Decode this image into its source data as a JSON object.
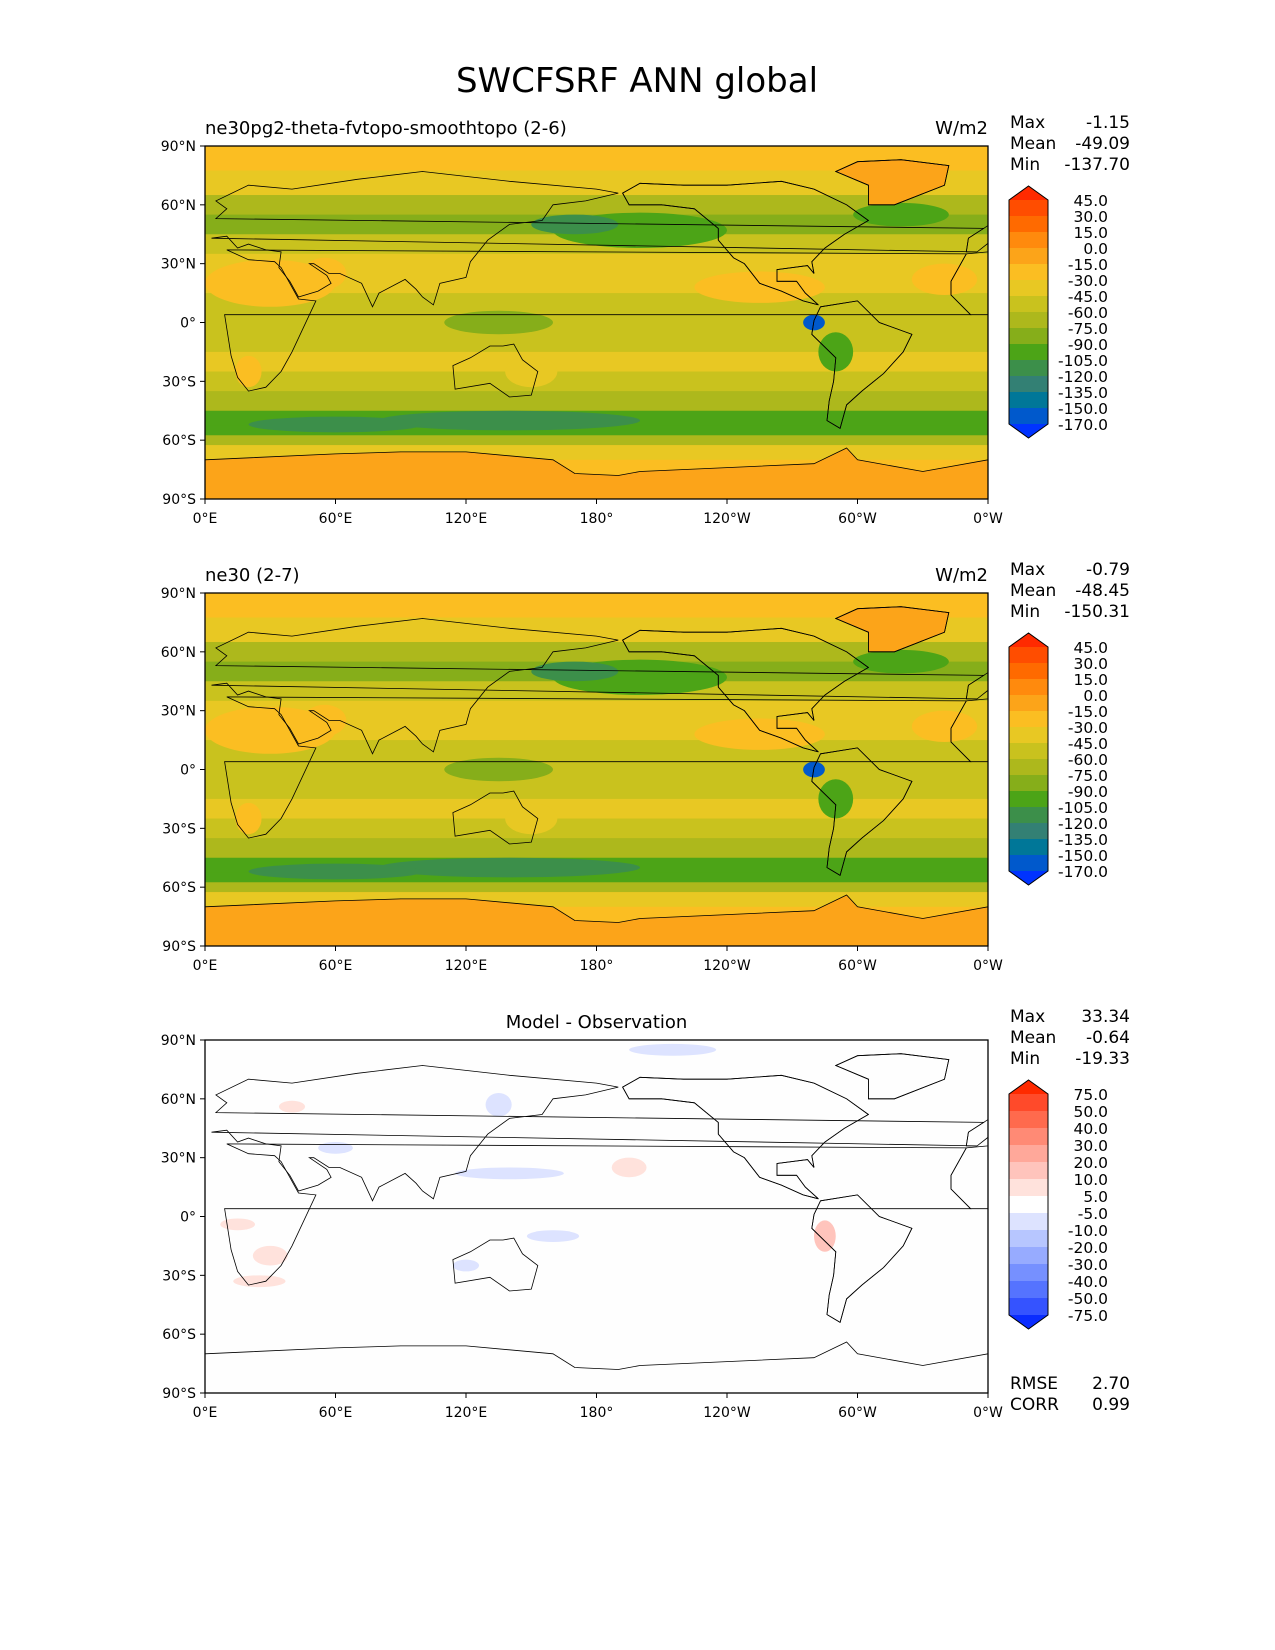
{
  "figure_title": "SWCFSRF ANN global",
  "chart_data": [
    {
      "type": "heatmap",
      "subtitle": "ne30pg2-theta-fvtopo-smoothtopo (2-6)",
      "units": "W/m2",
      "stats": {
        "Max": "-1.15",
        "Mean": "-49.09",
        "Min": "-137.70"
      },
      "x_ticks": [
        "0°E",
        "60°E",
        "120°E",
        "180°",
        "120°W",
        "60°W",
        "0°W"
      ],
      "y_ticks": [
        "90°N",
        "60°N",
        "30°N",
        "0°",
        "30°S",
        "60°S",
        "90°S"
      ],
      "xlim": [
        0,
        360
      ],
      "ylim": [
        -90,
        90
      ],
      "colorbar": {
        "levels": [
          "45.0",
          "30.0",
          "15.0",
          "0.0",
          "-15.0",
          "-30.0",
          "-45.0",
          "-60.0",
          "-75.0",
          "-90.0",
          "-105.0",
          "-120.0",
          "-135.0",
          "-150.0",
          "-170.0"
        ],
        "colors": [
          "#ff2a00",
          "#ff4d00",
          "#ff6a00",
          "#ff8a0d",
          "#fca419",
          "#fbbe22",
          "#e8c823",
          "#c9c21e",
          "#adb81c",
          "#86ae1a",
          "#4ca417",
          "#3c8f4a",
          "#338074",
          "#007798",
          "#0059cc",
          "#0033ff"
        ]
      },
      "zonal_estimate": {
        "lat": [
          85,
          70,
          60,
          50,
          40,
          30,
          20,
          10,
          0,
          -10,
          -20,
          -30,
          -40,
          -50,
          -55,
          -60,
          -65,
          -75,
          -85
        ],
        "value": [
          -25,
          -40,
          -60,
          -75,
          -55,
          -30,
          -30,
          -50,
          -55,
          -50,
          -40,
          -45,
          -70,
          -95,
          -90,
          -70,
          -40,
          -15,
          -10
        ]
      }
    },
    {
      "type": "heatmap",
      "subtitle": "ne30 (2-7)",
      "units": "W/m2",
      "stats": {
        "Max": "-0.79",
        "Mean": "-48.45",
        "Min": "-150.31"
      },
      "x_ticks": [
        "0°E",
        "60°E",
        "120°E",
        "180°",
        "120°W",
        "60°W",
        "0°W"
      ],
      "y_ticks": [
        "90°N",
        "60°N",
        "30°N",
        "0°",
        "30°S",
        "60°S",
        "90°S"
      ],
      "xlim": [
        0,
        360
      ],
      "ylim": [
        -90,
        90
      ],
      "colorbar": {
        "levels": [
          "45.0",
          "30.0",
          "15.0",
          "0.0",
          "-15.0",
          "-30.0",
          "-45.0",
          "-60.0",
          "-75.0",
          "-90.0",
          "-105.0",
          "-120.0",
          "-135.0",
          "-150.0",
          "-170.0"
        ],
        "colors": [
          "#ff2a00",
          "#ff4d00",
          "#ff6a00",
          "#ff8a0d",
          "#fca419",
          "#fbbe22",
          "#e8c823",
          "#c9c21e",
          "#adb81c",
          "#86ae1a",
          "#4ca417",
          "#3c8f4a",
          "#338074",
          "#007798",
          "#0059cc",
          "#0033ff"
        ]
      },
      "zonal_estimate": {
        "lat": [
          85,
          70,
          60,
          50,
          40,
          30,
          20,
          10,
          0,
          -10,
          -20,
          -30,
          -40,
          -50,
          -55,
          -60,
          -65,
          -75,
          -85
        ],
        "value": [
          -25,
          -40,
          -60,
          -75,
          -55,
          -30,
          -30,
          -50,
          -55,
          -50,
          -40,
          -45,
          -70,
          -95,
          -90,
          -70,
          -40,
          -15,
          -10
        ]
      }
    },
    {
      "type": "heatmap",
      "subtitle": "Model - Observation",
      "units": "",
      "stats": {
        "Max": "33.34",
        "Mean": "-0.64",
        "Min": "-19.33"
      },
      "metrics": {
        "RMSE": "2.70",
        "CORR": "0.99"
      },
      "x_ticks": [
        "0°E",
        "60°E",
        "120°E",
        "180°",
        "120°W",
        "60°W",
        "0°W"
      ],
      "y_ticks": [
        "90°N",
        "60°N",
        "30°N",
        "0°",
        "30°S",
        "60°S",
        "90°S"
      ],
      "xlim": [
        0,
        360
      ],
      "ylim": [
        -90,
        90
      ],
      "colorbar": {
        "levels": [
          "75.0",
          "50.0",
          "40.0",
          "30.0",
          "20.0",
          "10.0",
          "5.0",
          "-5.0",
          "-10.0",
          "-20.0",
          "-30.0",
          "-40.0",
          "-50.0",
          "-75.0"
        ],
        "colors": [
          "#ff2a00",
          "#ff4a2a",
          "#ff6a4d",
          "#ff8a75",
          "#ffa89a",
          "#ffc4bc",
          "#ffe2dc",
          "#ffffff",
          "#dde3ff",
          "#b7c6ff",
          "#97abff",
          "#7690ff",
          "#5573ff",
          "#3553ff",
          "#0a2cff"
        ]
      }
    }
  ]
}
